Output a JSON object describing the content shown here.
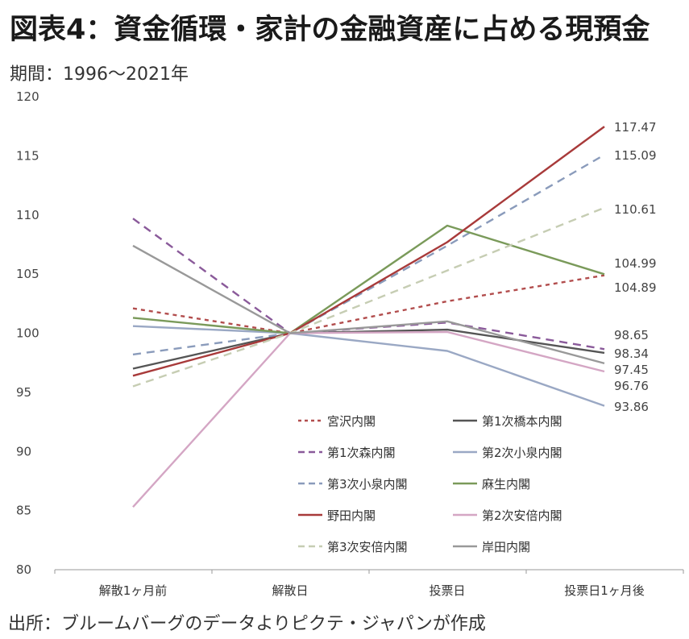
{
  "header": {
    "title": "図表4：資金循環・家計の金融資産に占める現預金",
    "subtitle": "期間：1996〜2021年"
  },
  "footer": {
    "source": "出所：ブルームバーグのデータよりピクテ・ジャパンが作成"
  },
  "chart_data": {
    "type": "line",
    "categories": [
      "解散1ヶ月前",
      "解散日",
      "投票日",
      "投票日1ヶ月後"
    ],
    "ylim": [
      80,
      120
    ],
    "yticks": [
      80,
      85,
      90,
      95,
      100,
      105,
      110,
      115,
      120
    ],
    "grid": false,
    "legend_position": "bottom-right",
    "series": [
      {
        "name": "宮沢内閣",
        "values": [
          102.1,
          100,
          102.7,
          104.89
        ],
        "color": "#b24d4d",
        "dash": "dotted",
        "end_label": "104.89"
      },
      {
        "name": "第1次橋本内閣",
        "values": [
          97.0,
          100,
          100.3,
          98.34
        ],
        "color": "#555555",
        "dash": "solid",
        "end_label": "98.34"
      },
      {
        "name": "第1次森内閣",
        "values": [
          109.7,
          100,
          100.9,
          98.65
        ],
        "color": "#8a5a9a",
        "dash": "dashed",
        "end_label": "98.65"
      },
      {
        "name": "第2次小泉内閣",
        "values": [
          100.6,
          100,
          98.5,
          93.86
        ],
        "color": "#9aa8c4",
        "dash": "solid",
        "end_label": "93.86"
      },
      {
        "name": "第3次小泉内閣",
        "values": [
          98.2,
          100,
          107.4,
          115.09
        ],
        "color": "#8a9bbb",
        "dash": "dashed",
        "end_label": "115.09"
      },
      {
        "name": "麻生内閣",
        "values": [
          101.3,
          100,
          109.1,
          104.99
        ],
        "color": "#7a9a5a",
        "dash": "solid",
        "end_label": "104.99"
      },
      {
        "name": "野田内閣",
        "values": [
          96.4,
          100,
          107.7,
          117.47
        ],
        "color": "#a83a3a",
        "dash": "solid",
        "end_label": "117.47"
      },
      {
        "name": "第2次安倍内閣",
        "values": [
          85.3,
          100,
          100.1,
          96.76
        ],
        "color": "#d4a6c4",
        "dash": "solid",
        "end_label": "96.76"
      },
      {
        "name": "第3次安倍内閣",
        "values": [
          95.5,
          100,
          105.3,
          110.61
        ],
        "color": "#c6cdb3",
        "dash": "dashed",
        "end_label": "110.61"
      },
      {
        "name": "岸田内閣",
        "values": [
          107.4,
          100,
          101.0,
          97.45
        ],
        "color": "#999999",
        "dash": "solid",
        "end_label": "97.45"
      }
    ]
  }
}
